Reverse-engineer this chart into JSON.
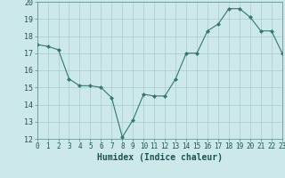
{
  "x": [
    0,
    1,
    2,
    3,
    4,
    5,
    6,
    7,
    8,
    9,
    10,
    11,
    12,
    13,
    14,
    15,
    16,
    17,
    18,
    19,
    20,
    21,
    22,
    23
  ],
  "y": [
    17.5,
    17.4,
    17.2,
    15.5,
    15.1,
    15.1,
    15.0,
    14.4,
    12.1,
    13.1,
    14.6,
    14.5,
    14.5,
    15.5,
    17.0,
    17.0,
    18.3,
    18.7,
    19.6,
    19.6,
    19.1,
    18.3,
    18.3,
    17.0
  ],
  "line_color": "#2e7b6e",
  "marker": "D",
  "marker_size": 2.0,
  "bg_color": "#cce8e8",
  "grid_color": "#aacccc",
  "xlabel": "Humidex (Indice chaleur)",
  "xlim": [
    0,
    23
  ],
  "ylim": [
    12,
    20
  ],
  "xticks": [
    0,
    1,
    2,
    3,
    4,
    5,
    6,
    7,
    8,
    9,
    10,
    11,
    12,
    13,
    14,
    15,
    16,
    17,
    18,
    19,
    20,
    21,
    22,
    23
  ],
  "yticks": [
    12,
    13,
    14,
    15,
    16,
    17,
    18,
    19,
    20
  ],
  "xlabel_color": "#1a5555",
  "axis_color": "#558888",
  "tick_color": "#1a5555",
  "tick_fontsize": 5.5,
  "xlabel_fontsize": 7.0
}
